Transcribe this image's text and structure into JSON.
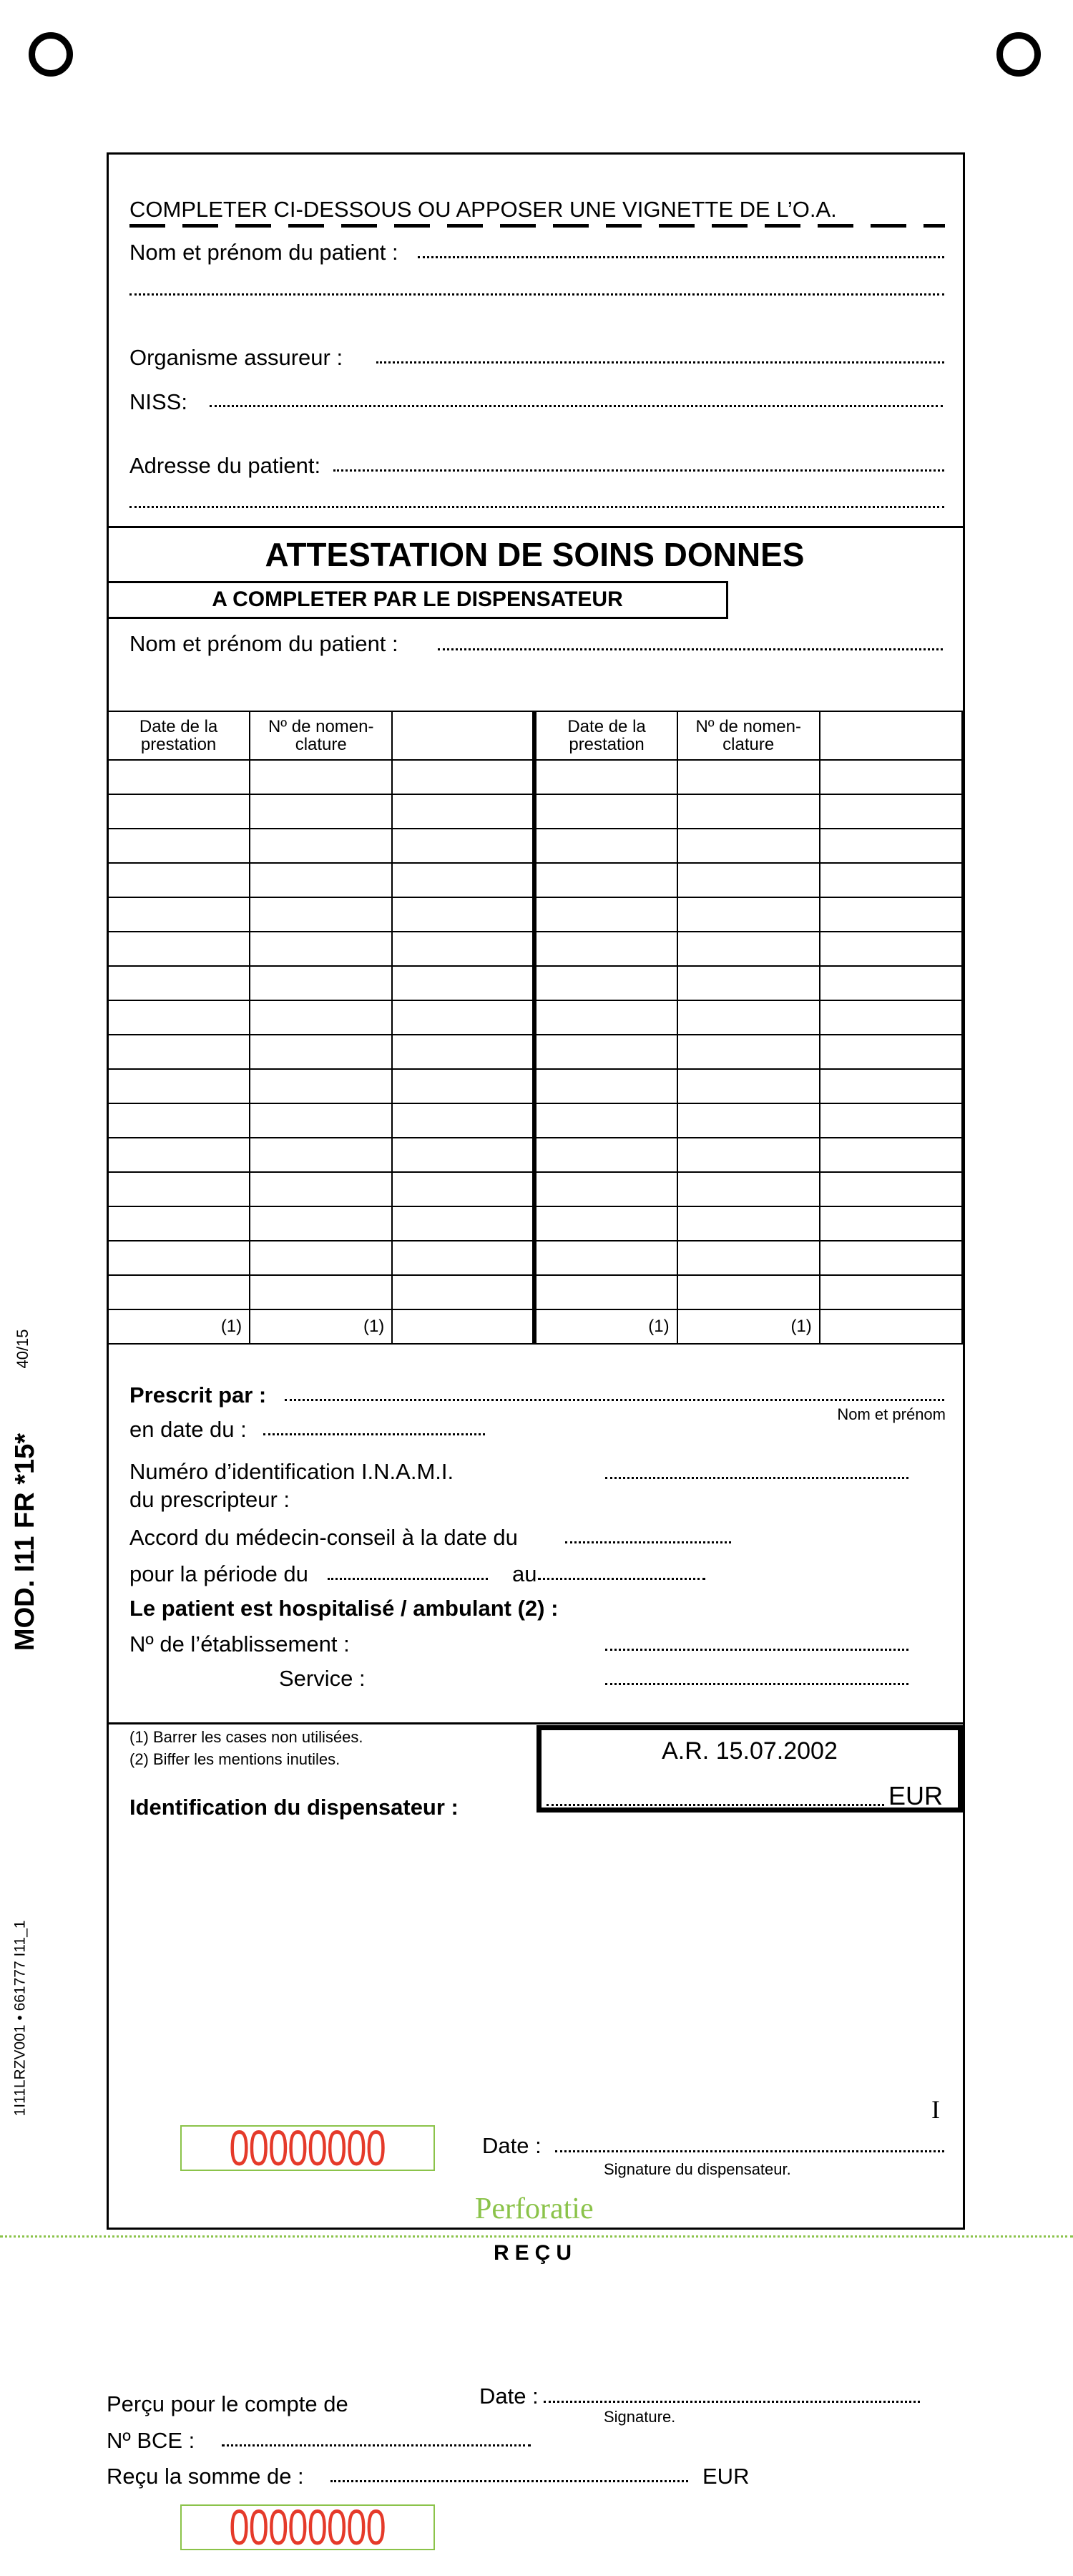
{
  "side": {
    "code_top": "40/15",
    "model": "MOD. I11 FR  *15*",
    "code_bottom": "1I11LRZV001 • 661777 I11_1"
  },
  "patient_block": {
    "heading": "COMPLETER CI-DESSOUS OU APPOSER UNE VIGNETTE DE L’O.A.",
    "name_label": "Nom et prénom du patient :",
    "insurer_label": "Organisme assureur :",
    "niss_label": "NISS:",
    "address_label": "Adresse du patient:"
  },
  "attestation": {
    "title": "ATTESTATION DE SOINS DONNES",
    "subtitle": "A COMPLETER PAR LE DISPENSATEUR",
    "name_label": "Nom et prénom du patient :"
  },
  "table": {
    "headers": [
      "Date de la prestation",
      "Nº de nomen-clature",
      "",
      "Date de la prestation",
      "Nº de nomen-clature",
      ""
    ],
    "header_lines": [
      [
        "Date de la",
        "prestation"
      ],
      [
        "Nº de nomen-",
        "clature"
      ],
      [
        "",
        ""
      ],
      [
        "Date de la",
        "prestation"
      ],
      [
        "Nº de nomen-",
        "clature"
      ],
      [
        "",
        ""
      ]
    ],
    "footer": [
      "(1)",
      "(1)",
      "",
      "(1)",
      "(1)",
      ""
    ]
  },
  "prescription": {
    "prescribed_by": "Prescrit par :",
    "name_hint": "Nom et prénom",
    "date_label": "en date du :",
    "inami_line1": "Numéro d’identification I.N.A.M.I.",
    "inami_line2": "du prescripteur :",
    "accord": "Accord du médecin-conseil à la date du",
    "period": "pour la période du",
    "period_to": "au",
    "hospital": "Le patient est hospitalisé / ambulant (2) :",
    "establishment": "Nº de l’établissement :",
    "service": "Service :"
  },
  "footer": {
    "note1": "(1) Barrer les cases non utilisées.",
    "note2": "(2) Biffer les mentions inutiles.",
    "identification": "Identification du dispensateur :",
    "ar": "A.R. 15.07.2002",
    "currency": "EUR",
    "marker": "I",
    "serial": "00000000",
    "date_label": "Date :",
    "signature": "Signature du dispensateur.",
    "perforation": "Perforatie"
  },
  "receipt": {
    "title": "REÇU",
    "date_label": "Date :",
    "signature": "Signature.",
    "account": "Perçu pour le compte de",
    "bce": "Nº BCE :",
    "sum": "Reçu la somme de :",
    "currency": "EUR",
    "serial": "00000000"
  },
  "colors": {
    "serial": "#e53a2a",
    "perforation": "#8bc34a"
  }
}
